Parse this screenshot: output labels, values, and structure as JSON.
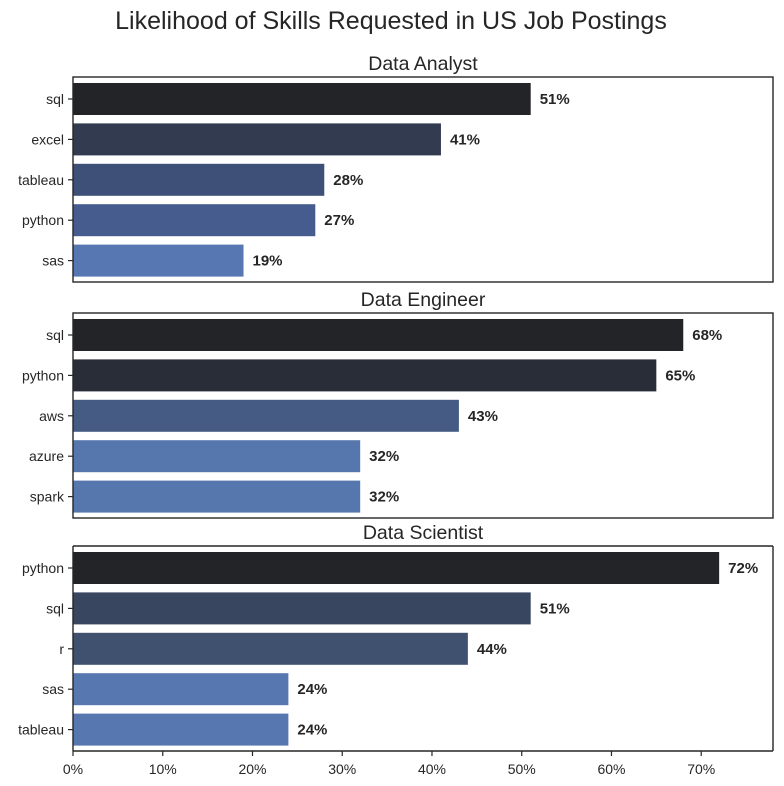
{
  "title": "Likelihood of Skills Requested in US Job Postings",
  "chart_data": [
    {
      "type": "bar",
      "orientation": "horizontal",
      "title": "Data Analyst",
      "categories": [
        "sql",
        "excel",
        "tableau",
        "python",
        "sas"
      ],
      "values": [
        51,
        41,
        28,
        27,
        19
      ],
      "labels": [
        "51%",
        "41%",
        "28%",
        "27%",
        "19%"
      ],
      "colors": [
        "#232428",
        "#323b4f",
        "#3e5078",
        "#465b8e",
        "#5677b1"
      ],
      "xlim": [
        0,
        78
      ],
      "x_tick_labels_shown": false
    },
    {
      "type": "bar",
      "orientation": "horizontal",
      "title": "Data Engineer",
      "categories": [
        "sql",
        "python",
        "aws",
        "azure",
        "spark"
      ],
      "values": [
        68,
        65,
        43,
        32,
        32
      ],
      "labels": [
        "68%",
        "65%",
        "43%",
        "32%",
        "32%"
      ],
      "colors": [
        "#232428",
        "#292d38",
        "#465b84",
        "#5677ad",
        "#5677ad"
      ],
      "xlim": [
        0,
        78
      ],
      "x_tick_labels_shown": false
    },
    {
      "type": "bar",
      "orientation": "horizontal",
      "title": "Data Scientist",
      "categories": [
        "python",
        "sql",
        "r",
        "sas",
        "tableau"
      ],
      "values": [
        72,
        51,
        44,
        24,
        24
      ],
      "labels": [
        "72%",
        "51%",
        "44%",
        "24%",
        "24%"
      ],
      "colors": [
        "#232428",
        "#38465f",
        "#40516f",
        "#5677b0",
        "#5677b0"
      ],
      "xlim": [
        0,
        78
      ],
      "x_tick_labels_shown": true,
      "x_ticks": [
        0,
        10,
        20,
        30,
        40,
        50,
        60,
        70
      ],
      "x_tick_labels": [
        "0%",
        "10%",
        "20%",
        "30%",
        "40%",
        "50%",
        "60%",
        "70%"
      ]
    }
  ]
}
